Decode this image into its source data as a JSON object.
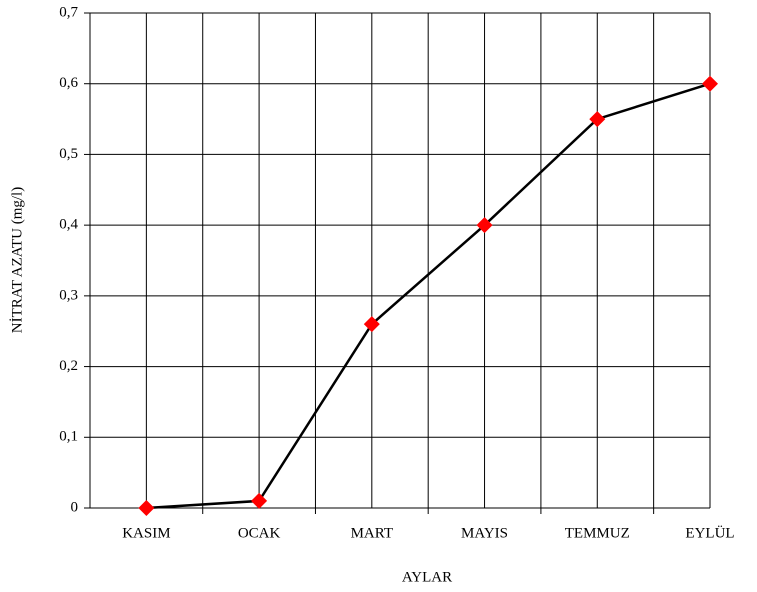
{
  "chart_data": {
    "type": "line",
    "x_label": "AYLAR",
    "y_label": "NİTRAT AZATU (mg/l)",
    "categories": [
      "KASIM",
      "OCAK",
      "MART",
      "MAYIS",
      "TEMMUZ",
      "EYLÜL"
    ],
    "series": [
      {
        "color": "#000000",
        "marker_color": "#ff0000",
        "values": [
          0,
          0.01,
          0.26,
          0.4,
          0.55,
          0.6
        ]
      }
    ],
    "ylim": [
      0,
      0.7
    ],
    "yticks": [
      0,
      {
        "value": 0.1,
        "label": "0,1"
      },
      {
        "value": 0.2,
        "label": "0,2"
      },
      {
        "value": 0.3,
        "label": "0,3"
      },
      {
        "value": 0.4,
        "label": "0,4"
      },
      {
        "value": 0.5,
        "label": "0,5"
      },
      {
        "value": 0.6,
        "label": "0,6"
      },
      {
        "value": 0.7,
        "label": "0,7"
      }
    ],
    "grid": true
  }
}
